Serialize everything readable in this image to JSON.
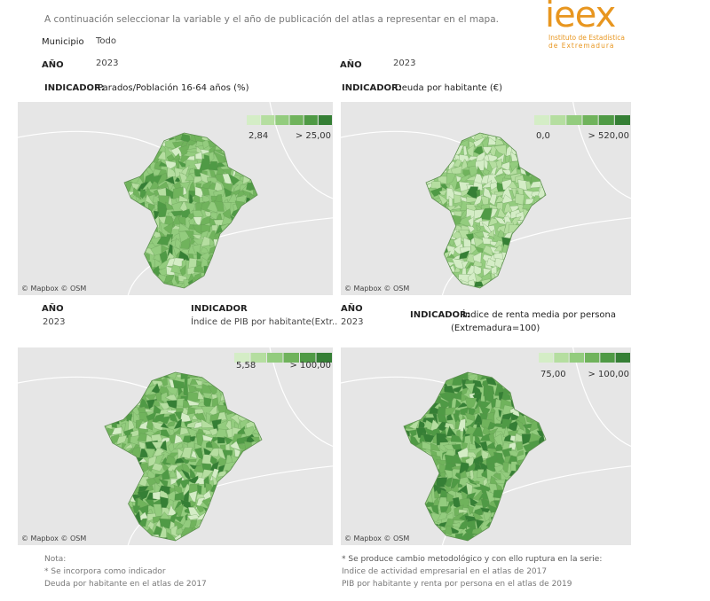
{
  "header": {
    "instructions": "A continuación seleccionar la variable  y el año de publicación del atlas a representar en el mapa.",
    "logo": "ieex",
    "logo_line1": "Instituto de Estadística",
    "logo_line2": "de Extremadura"
  },
  "filters": {
    "municipio_label": "Municipio",
    "municipio_value": "Todo"
  },
  "panels": [
    {
      "year_label": "AÑO",
      "year": "2023",
      "indicator_label": "INDICADOR:",
      "indicator": "Parados/Población 16-64 años (%)",
      "legend_min": "2,84",
      "legend_max": "> 25,00",
      "attribution": "© Mapbox © OSM"
    },
    {
      "year_label": "AÑO",
      "year": "2023",
      "indicator_label": "INDICADOR:",
      "indicator": "Deuda por habitante (€)",
      "legend_min": "0,0",
      "legend_max": "> 520,00",
      "attribution": "© Mapbox © OSM"
    },
    {
      "year_label": "AÑO",
      "year": "2023",
      "indicator_label": "INDICADOR",
      "indicator": "Índice de PIB por habitante(Extr..",
      "legend_min": "5,58",
      "legend_max": "> 100,00",
      "attribution": "© Mapbox © OSM"
    },
    {
      "year_label": "AÑO",
      "year": "2023",
      "indicator_label": "INDICADOR:",
      "indicator": "Índice de renta media por persona",
      "indicator_note": "(Extremadura=100)",
      "legend_min": "75,00",
      "legend_max": "> 100,00",
      "attribution": "© Mapbox © OSM"
    }
  ],
  "notes": {
    "left": [
      "Nota:",
      "* Se incorpora como indicador",
      "Deuda por habitante en el atlas de 2017"
    ],
    "right": [
      "* Se produce cambio metodológico y con ello ruptura en la serie:",
      "Indice de actividad empresarial en el atlas de 2017",
      "PIB por habitante y renta por persona en el atlas de 2019"
    ]
  }
}
